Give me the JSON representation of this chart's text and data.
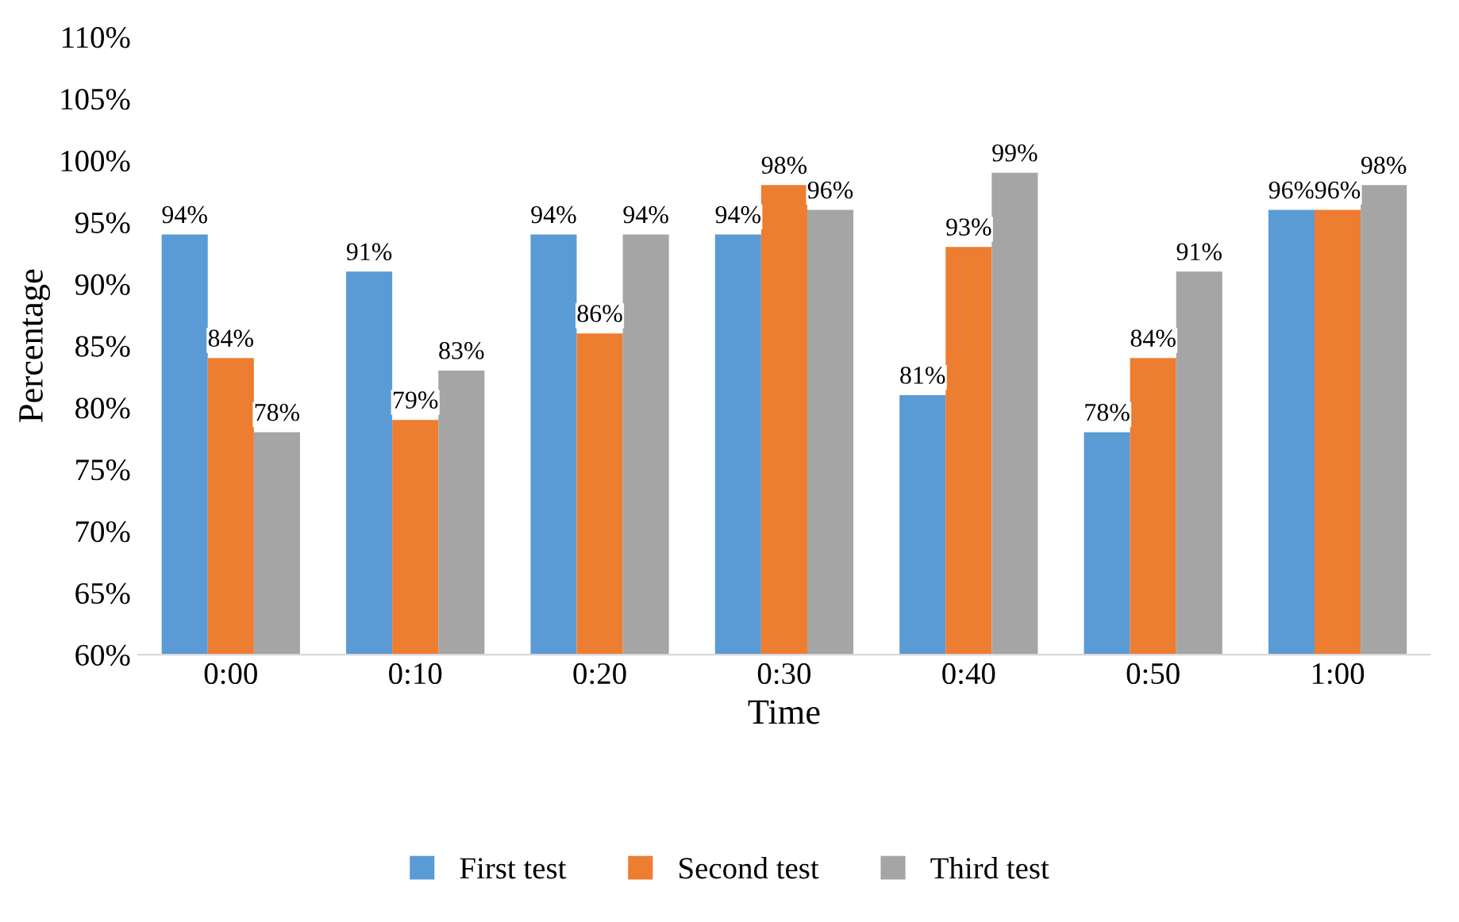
{
  "chart_data": {
    "type": "bar",
    "xlabel": "Time",
    "ylabel": "Percentage",
    "categories": [
      "0:00",
      "0:10",
      "0:20",
      "0:30",
      "0:40",
      "0:50",
      "1:00"
    ],
    "series": [
      {
        "name": "First test",
        "color": "#5b9bd5",
        "values": [
          94,
          91,
          94,
          94,
          81,
          78,
          96
        ],
        "value_labels": [
          "94%",
          "91%",
          "94%",
          "94%",
          "81%",
          "78%",
          "96%"
        ]
      },
      {
        "name": "Second test",
        "color": "#ed7d31",
        "values": [
          84,
          79,
          86,
          98,
          93,
          84,
          96
        ],
        "value_labels": [
          "84%",
          "79%",
          "86%",
          "98%",
          "93%",
          "84%",
          "96%"
        ]
      },
      {
        "name": "Third test",
        "color": "#a5a5a5",
        "values": [
          78,
          83,
          94,
          96,
          99,
          91,
          98
        ],
        "value_labels": [
          "78%",
          "83%",
          "94%",
          "96%",
          "99%",
          "91%",
          "98%"
        ]
      }
    ],
    "ylim": [
      60,
      110
    ],
    "yticks": [
      {
        "value": 60,
        "label": "60%"
      },
      {
        "value": 65,
        "label": "65%"
      },
      {
        "value": 70,
        "label": "70%"
      },
      {
        "value": 75,
        "label": "75%"
      },
      {
        "value": 80,
        "label": "80%"
      },
      {
        "value": 85,
        "label": "85%"
      },
      {
        "value": 90,
        "label": "90%"
      },
      {
        "value": 95,
        "label": "95%"
      },
      {
        "value": 100,
        "label": "100%"
      },
      {
        "value": 105,
        "label": "105%"
      },
      {
        "value": 110,
        "label": "110%"
      }
    ],
    "grid": false,
    "legend": "bottom"
  }
}
